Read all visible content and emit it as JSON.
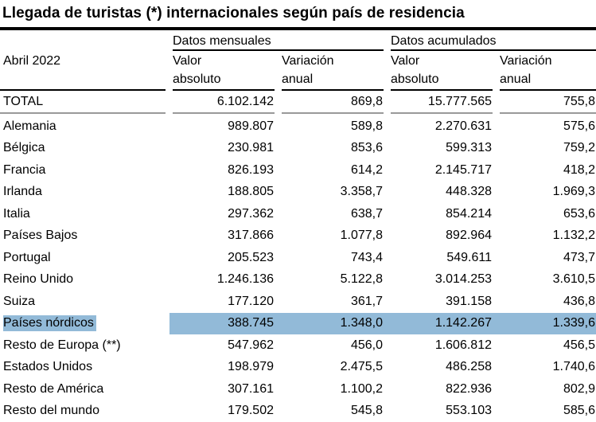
{
  "title": "Llegada de turistas (*) internacionales según país de residencia",
  "table": {
    "period_label": "Abril 2022",
    "highlight_color": "#92bad8",
    "column_groups": [
      {
        "label": "Datos mensuales"
      },
      {
        "label": "Datos acumulados"
      }
    ],
    "sub_headers": [
      {
        "line1": "Valor",
        "line2": "absoluto"
      },
      {
        "line1": "Variación",
        "line2": "anual"
      },
      {
        "line1": "Valor",
        "line2": "absoluto"
      },
      {
        "line1": "Variación",
        "line2": "anual"
      }
    ],
    "total_row": {
      "label": "TOTAL",
      "values": [
        "6.102.142",
        "869,8",
        "15.777.565",
        "755,8"
      ]
    },
    "rows": [
      {
        "label": "Alemania",
        "values": [
          "989.807",
          "589,8",
          "2.270.631",
          "575,6"
        ],
        "highlighted": false
      },
      {
        "label": "Bélgica",
        "values": [
          "230.981",
          "853,6",
          "599.313",
          "759,2"
        ],
        "highlighted": false
      },
      {
        "label": "Francia",
        "values": [
          "826.193",
          "614,2",
          "2.145.717",
          "418,2"
        ],
        "highlighted": false
      },
      {
        "label": "Irlanda",
        "values": [
          "188.805",
          "3.358,7",
          "448.328",
          "1.969,3"
        ],
        "highlighted": false
      },
      {
        "label": "Italia",
        "values": [
          "297.362",
          "638,7",
          "854.214",
          "653,6"
        ],
        "highlighted": false
      },
      {
        "label": "Países Bajos",
        "values": [
          "317.866",
          "1.077,8",
          "892.964",
          "1.132,2"
        ],
        "highlighted": false
      },
      {
        "label": "Portugal",
        "values": [
          "205.523",
          "743,4",
          "549.611",
          "473,7"
        ],
        "highlighted": false
      },
      {
        "label": "Reino Unido",
        "values": [
          "1.246.136",
          "5.122,8",
          "3.014.253",
          "3.610,5"
        ],
        "highlighted": false
      },
      {
        "label": "Suiza",
        "values": [
          "177.120",
          "361,7",
          "391.158",
          "436,8"
        ],
        "highlighted": false
      },
      {
        "label": "Países nórdicos",
        "values": [
          "388.745",
          "1.348,0",
          "1.142.267",
          "1.339,6"
        ],
        "highlighted": true
      },
      {
        "label": "Resto de Europa (**)",
        "values": [
          "547.962",
          "456,0",
          "1.606.812",
          "456,5"
        ],
        "highlighted": false
      },
      {
        "label": "Estados Unidos",
        "values": [
          "198.979",
          "2.475,5",
          "486.258",
          "1.740,6"
        ],
        "highlighted": false
      },
      {
        "label": "Resto de América",
        "values": [
          "307.161",
          "1.100,2",
          "822.936",
          "802,9"
        ],
        "highlighted": false
      },
      {
        "label": "Resto del mundo",
        "values": [
          "179.502",
          "545,8",
          "553.103",
          "585,6"
        ],
        "highlighted": false
      }
    ]
  }
}
